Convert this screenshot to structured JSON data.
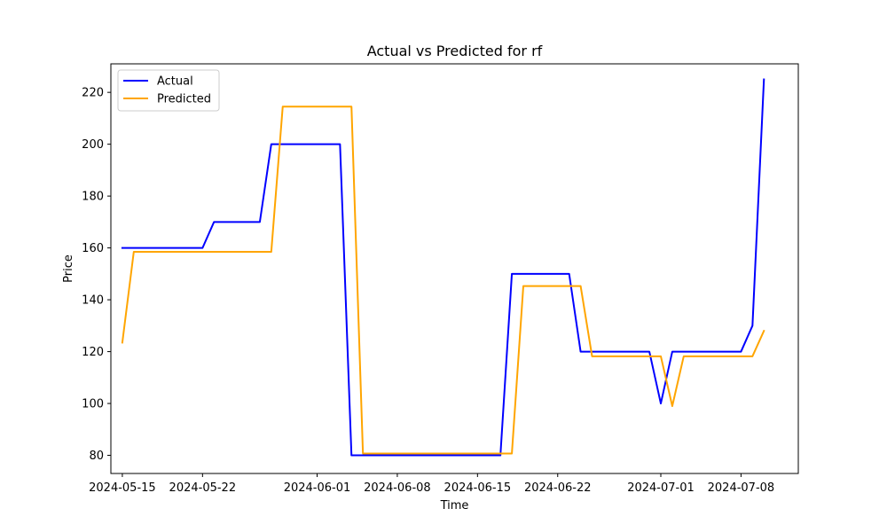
{
  "chart_data": {
    "type": "line",
    "title": "Actual vs Predicted for rf",
    "xlabel": "Time",
    "ylabel": "Price",
    "ylim": [
      73,
      231
    ],
    "xlim": [
      "2024-05-14",
      "2024-07-13"
    ],
    "y_ticks": [
      80,
      100,
      120,
      140,
      160,
      180,
      200,
      220
    ],
    "x_ticks": [
      "2024-05-15",
      "2024-05-22",
      "2024-06-01",
      "2024-06-08",
      "2024-06-15",
      "2024-06-22",
      "2024-07-01",
      "2024-07-08"
    ],
    "grid": false,
    "legend_position": "top-left",
    "x": [
      "2024-05-15",
      "2024-05-16",
      "2024-05-22",
      "2024-05-23",
      "2024-05-27",
      "2024-05-28",
      "2024-05-29",
      "2024-06-03",
      "2024-06-04",
      "2024-06-05",
      "2024-06-17",
      "2024-06-18",
      "2024-06-19",
      "2024-06-23",
      "2024-06-24",
      "2024-06-25",
      "2024-06-30",
      "2024-07-01",
      "2024-07-02",
      "2024-07-03",
      "2024-07-08",
      "2024-07-09",
      "2024-07-10"
    ],
    "series": [
      {
        "name": "Actual",
        "color": "#0000ff",
        "values": [
          160,
          160,
          160,
          170,
          170,
          200,
          200,
          200,
          80,
          80,
          80,
          150,
          150,
          150,
          120,
          120,
          120,
          100,
          120,
          120,
          120,
          130,
          225
        ]
      },
      {
        "name": "Predicted",
        "color": "#ffa500",
        "values": [
          123.5,
          158.5,
          158.5,
          158.5,
          158.5,
          158.5,
          214.5,
          214.5,
          214.5,
          80.7,
          80.7,
          80.7,
          145.3,
          145.3,
          145.3,
          118.2,
          118.2,
          118.2,
          99,
          118.2,
          118.2,
          118.2,
          128
        ]
      }
    ]
  }
}
